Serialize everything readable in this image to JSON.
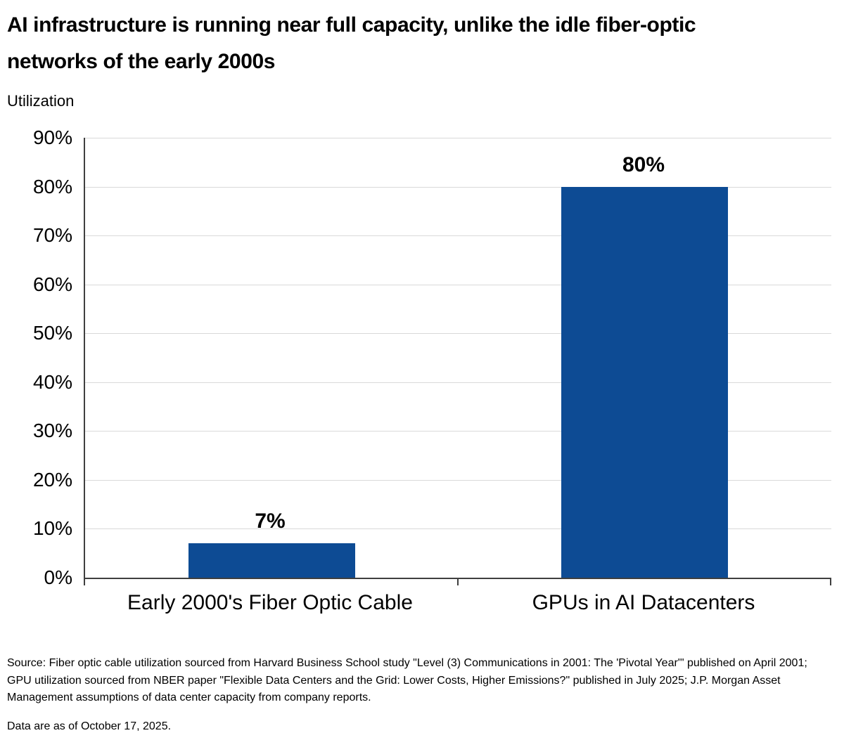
{
  "header": {
    "title_lines": [
      "AI infrastructure is running near full capacity, unlike the idle fiber-optic",
      "networks of the early 2000s"
    ],
    "axis_title": "Utilization"
  },
  "chart_data": {
    "type": "bar",
    "title": "AI infrastructure is running near full capacity, unlike the idle fiber-optic networks of the early 2000s",
    "categories": [
      "Early 2000's Fiber Optic Cable",
      "GPUs in AI Datacenters"
    ],
    "values": [
      7,
      80
    ],
    "value_labels": [
      "7%",
      "80%"
    ],
    "xlabel": "",
    "ylabel": "Utilization",
    "ylim": [
      0,
      90
    ],
    "ytick_step": 10,
    "ytick_labels": [
      "0%",
      "10%",
      "20%",
      "30%",
      "40%",
      "50%",
      "60%",
      "70%",
      "80%",
      "90%"
    ],
    "grid": "horizontal-light",
    "legend": "none",
    "bar_color": "#0d4b94"
  },
  "colors": {
    "bar": "#0d4b94",
    "gridline": "#d9d9d9",
    "axis": "#3f3f3f",
    "text": "#000000"
  },
  "footer": {
    "source": "Source: Fiber optic cable utilization sourced from Harvard Business School study \"Level (3) Communications in 2001: The 'Pivotal Year'\" published on April 2001; GPU utilization sourced from NBER paper \"Flexible Data Centers and the Grid: Lower Costs, Higher Emissions?\" published in July 2025; J.P. Morgan Asset Management assumptions of data center capacity from company reports.",
    "asof": "Data are as of October 17, 2025."
  }
}
